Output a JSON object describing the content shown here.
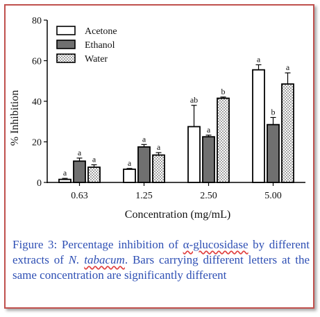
{
  "chart_data": {
    "type": "bar",
    "categories": [
      "0.63",
      "1.25",
      "2.50",
      "5.00"
    ],
    "xlabel": "Concentration (mg/mL)",
    "ylabel": "% Inhibition",
    "ylim": [
      0,
      80
    ],
    "yticks": [
      0,
      20,
      40,
      60,
      80
    ],
    "legend_position": "top-left",
    "grid": false,
    "series": [
      {
        "name": "Acetone",
        "pattern": "white",
        "color": "#ffffff",
        "values": [
          1.5,
          6.5,
          27.5,
          55.5
        ],
        "errors": [
          0.5,
          0.4,
          10.5,
          2.5
        ],
        "letters": [
          "a",
          "a",
          "ab",
          "a"
        ]
      },
      {
        "name": "Ethanol",
        "pattern": "gray",
        "color": "#707070",
        "values": [
          10.5,
          17.5,
          22.5,
          28.5
        ],
        "errors": [
          1.5,
          1.2,
          0.8,
          3.5
        ],
        "letters": [
          "a",
          "a",
          "a",
          "b"
        ]
      },
      {
        "name": "Water",
        "pattern": "dotted",
        "color": "#ffffff",
        "values": [
          7.5,
          13.5,
          41.5,
          48.5
        ],
        "errors": [
          1.2,
          1.2,
          0.6,
          5.5
        ],
        "letters": [
          "a",
          "a",
          "b",
          "a"
        ]
      }
    ]
  },
  "caption": {
    "part1": "Figure 3: Percentage inhibition of ",
    "wavy": "α-glucosidase",
    "part2": " by different extracts of ",
    "species_italic": "N. ",
    "species_wavy": "tabacum",
    "part3": ". Bars carrying different letters at the same concentration are significantly different"
  },
  "colors": {
    "frame": "#c0504d",
    "caption": "#2e4fb4"
  }
}
